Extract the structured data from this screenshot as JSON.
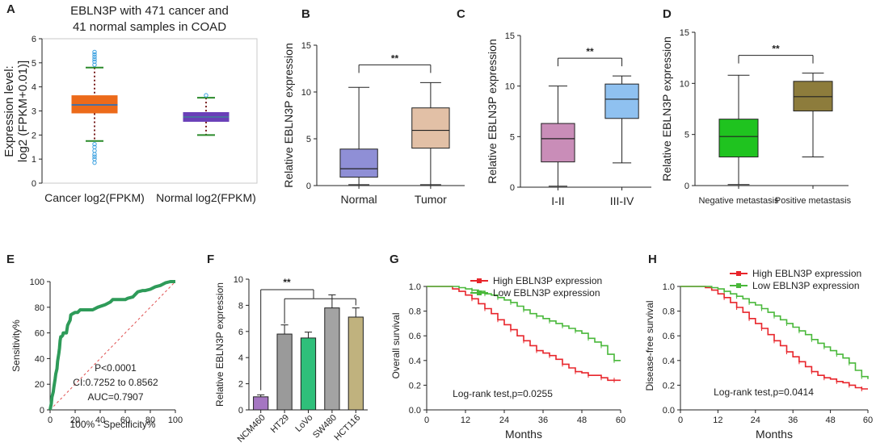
{
  "chart_data": [
    {
      "panel": "A",
      "type": "box",
      "title": [
        "EBLN3P with 471 cancer and",
        "41 normal samples in COAD"
      ],
      "ylabel": [
        "Expression level:",
        "log2 (FPKM+0.01)]"
      ],
      "ylim": [
        0,
        6
      ],
      "yticks": [
        0,
        1,
        2,
        3,
        4,
        5,
        6
      ],
      "categories": [
        "Cancer log2(FPKM)",
        "Normal log2(FPKM)"
      ],
      "boxes": [
        {
          "min": 1.75,
          "q1": 2.9,
          "median": 3.25,
          "q3": 3.65,
          "max": 4.8,
          "color": "#ec6a1a",
          "outliers": [
            0.85,
            1.0,
            1.1,
            1.2,
            1.35,
            1.5,
            1.62,
            4.92,
            5.05,
            5.15,
            5.25,
            5.35,
            5.45
          ]
        },
        {
          "min": 2.0,
          "q1": 2.55,
          "median": 2.75,
          "q3": 2.95,
          "max": 3.55,
          "color": "#6a3fb8",
          "outliers": [
            3.65
          ]
        }
      ]
    },
    {
      "panel": "B",
      "type": "box",
      "ylabel": "Relative EBLN3P expression",
      "ylim": [
        0,
        15
      ],
      "yticks": [
        0,
        5,
        10,
        15
      ],
      "categories": [
        "Normal",
        "Tumor"
      ],
      "boxes": [
        {
          "min": 0.1,
          "q1": 0.9,
          "median": 1.8,
          "q3": 3.9,
          "max": 10.5,
          "color": "#8f8fd6"
        },
        {
          "min": 0.1,
          "q1": 4.0,
          "median": 5.9,
          "q3": 8.3,
          "max": 11.0,
          "color": "#e2c0a6"
        }
      ],
      "significance": "**"
    },
    {
      "panel": "C",
      "type": "box",
      "ylabel": "Relative EBLN3P expression",
      "ylim": [
        0,
        15
      ],
      "yticks": [
        0,
        5,
        10,
        15
      ],
      "categories": [
        "I-II",
        "III-IV"
      ],
      "boxes": [
        {
          "min": 0.1,
          "q1": 2.5,
          "median": 4.8,
          "q3": 6.3,
          "max": 10.0,
          "color": "#c98db8"
        },
        {
          "min": 2.4,
          "q1": 6.8,
          "median": 8.7,
          "q3": 10.2,
          "max": 11.0,
          "color": "#8fc1f0"
        }
      ],
      "significance": "**"
    },
    {
      "panel": "D",
      "type": "box",
      "ylabel": "Relative EBLN3P expression",
      "ylim": [
        0,
        15
      ],
      "yticks": [
        0,
        5,
        10,
        15
      ],
      "categories": [
        "Negative metastasis",
        "Positive metastasis"
      ],
      "boxes": [
        {
          "min": 0.1,
          "q1": 2.8,
          "median": 4.8,
          "q3": 6.5,
          "max": 10.8,
          "color": "#1fc31f"
        },
        {
          "min": 2.8,
          "q1": 7.3,
          "median": 8.7,
          "q3": 10.2,
          "max": 11.0,
          "color": "#8d7c3c"
        }
      ],
      "significance": "**"
    },
    {
      "panel": "E",
      "type": "roc",
      "xlabel": "100% - Specificity%",
      "ylabel": "Sensitivity%",
      "xlim": [
        0,
        100
      ],
      "ylim": [
        0,
        100
      ],
      "xticks": [
        0,
        20,
        40,
        60,
        80,
        100
      ],
      "yticks": [
        0,
        20,
        40,
        60,
        80,
        100
      ],
      "x": [
        0,
        1,
        1.5,
        2.5,
        3,
        4,
        4.5,
        5.5,
        6,
        7,
        7.5,
        8,
        8.5,
        9,
        10,
        10.5,
        11,
        13,
        14,
        16,
        16.5,
        18,
        20,
        22,
        24,
        26,
        30,
        34,
        38,
        44,
        48,
        50,
        54,
        56,
        60,
        62,
        66,
        70,
        74,
        76,
        80,
        84,
        88,
        92,
        96,
        100
      ],
      "y": [
        0,
        5,
        10,
        14,
        18,
        24,
        28,
        32,
        38,
        44,
        48,
        54,
        57,
        57,
        58,
        60,
        60,
        60,
        66,
        70,
        74,
        75,
        76,
        76,
        78,
        78,
        78,
        78,
        80,
        82,
        84,
        86,
        86,
        86,
        86,
        87,
        88,
        92,
        93,
        93,
        94,
        96,
        97,
        99,
        100,
        100
      ],
      "stats": [
        "P<0.0001",
        "CI:0.7252 to 0.8562",
        "AUC=0.7907"
      ],
      "line_color": "#2e9b59"
    },
    {
      "panel": "F",
      "type": "bar",
      "ylabel": "Relative EBLN3P expression",
      "ylim": [
        0,
        10
      ],
      "yticks": [
        0,
        2,
        4,
        6,
        8,
        10
      ],
      "categories": [
        "NCM460",
        "HT29",
        "LoVo",
        "SW480",
        "HCT116"
      ],
      "values": [
        1.0,
        5.8,
        5.5,
        7.8,
        7.1
      ],
      "errors": [
        0.15,
        0.7,
        0.45,
        1.0,
        0.7
      ],
      "colors": [
        "#a576c2",
        "#9a9a9a",
        "#2fbf7a",
        "#a3a3a3",
        "#c0b27e"
      ],
      "significance": "**"
    },
    {
      "panel": "G",
      "type": "survival",
      "xlabel": "Months",
      "ylabel": "Overall survival",
      "xlim": [
        0,
        60
      ],
      "ylim": [
        0,
        1.0
      ],
      "xticks": [
        0,
        12,
        24,
        36,
        48,
        60
      ],
      "yticks": [
        0.0,
        0.2,
        0.4,
        0.6,
        0.8,
        1.0
      ],
      "series": [
        {
          "name": "High EBLN3P expression",
          "color": "#e8252b",
          "x": [
            0,
            6,
            8,
            10,
            12,
            14,
            16,
            18,
            20,
            22,
            24,
            26,
            28,
            30,
            32,
            34,
            36,
            38,
            40,
            42,
            44,
            46,
            48,
            50,
            52,
            54,
            56,
            58,
            60
          ],
          "y": [
            1.0,
            1.0,
            0.98,
            0.96,
            0.93,
            0.9,
            0.86,
            0.82,
            0.78,
            0.73,
            0.69,
            0.65,
            0.6,
            0.56,
            0.52,
            0.48,
            0.46,
            0.44,
            0.41,
            0.37,
            0.34,
            0.31,
            0.3,
            0.28,
            0.28,
            0.26,
            0.24,
            0.24,
            0.24
          ]
        },
        {
          "name": "Low EBLN3P expression",
          "color": "#49b83a",
          "x": [
            0,
            6,
            8,
            10,
            12,
            14,
            16,
            18,
            20,
            22,
            24,
            26,
            28,
            30,
            32,
            34,
            36,
            38,
            40,
            42,
            44,
            46,
            48,
            50,
            52,
            54,
            56,
            58,
            60
          ],
          "y": [
            1.0,
            1.0,
            1.0,
            0.99,
            0.98,
            0.97,
            0.96,
            0.94,
            0.93,
            0.91,
            0.89,
            0.87,
            0.84,
            0.81,
            0.78,
            0.76,
            0.74,
            0.72,
            0.7,
            0.68,
            0.66,
            0.64,
            0.62,
            0.58,
            0.55,
            0.52,
            0.45,
            0.4,
            0.4
          ]
        }
      ],
      "annotation": "Log-rank test,p=0.0255"
    },
    {
      "panel": "H",
      "type": "survival",
      "xlabel": "Months",
      "ylabel": "Disease-free survival",
      "xlim": [
        0,
        60
      ],
      "ylim": [
        0,
        1.0
      ],
      "xticks": [
        0,
        12,
        24,
        36,
        48,
        60
      ],
      "yticks": [
        0.0,
        0.2,
        0.4,
        0.6,
        0.8,
        1.0
      ],
      "series": [
        {
          "name": "High EBLN3P expression",
          "color": "#e8252b",
          "x": [
            0,
            6,
            8,
            10,
            12,
            14,
            16,
            18,
            20,
            22,
            24,
            26,
            28,
            30,
            32,
            34,
            36,
            38,
            40,
            42,
            44,
            46,
            48,
            50,
            52,
            54,
            56,
            58,
            60
          ],
          "y": [
            1.0,
            1.0,
            0.99,
            0.97,
            0.94,
            0.91,
            0.87,
            0.83,
            0.79,
            0.74,
            0.7,
            0.66,
            0.61,
            0.56,
            0.52,
            0.47,
            0.43,
            0.39,
            0.35,
            0.31,
            0.28,
            0.26,
            0.25,
            0.23,
            0.22,
            0.2,
            0.18,
            0.17,
            0.17
          ]
        },
        {
          "name": "Low EBLN3P expression",
          "color": "#49b83a",
          "x": [
            0,
            6,
            8,
            10,
            12,
            14,
            16,
            18,
            20,
            22,
            24,
            26,
            28,
            30,
            32,
            34,
            36,
            38,
            40,
            42,
            44,
            46,
            48,
            50,
            52,
            54,
            56,
            58,
            60
          ],
          "y": [
            1.0,
            1.0,
            1.0,
            0.99,
            0.98,
            0.96,
            0.94,
            0.92,
            0.9,
            0.87,
            0.85,
            0.82,
            0.79,
            0.76,
            0.73,
            0.7,
            0.67,
            0.64,
            0.61,
            0.57,
            0.54,
            0.51,
            0.48,
            0.45,
            0.42,
            0.38,
            0.32,
            0.27,
            0.25
          ]
        }
      ],
      "annotation": "Log-rank test,p=0.0414"
    }
  ]
}
